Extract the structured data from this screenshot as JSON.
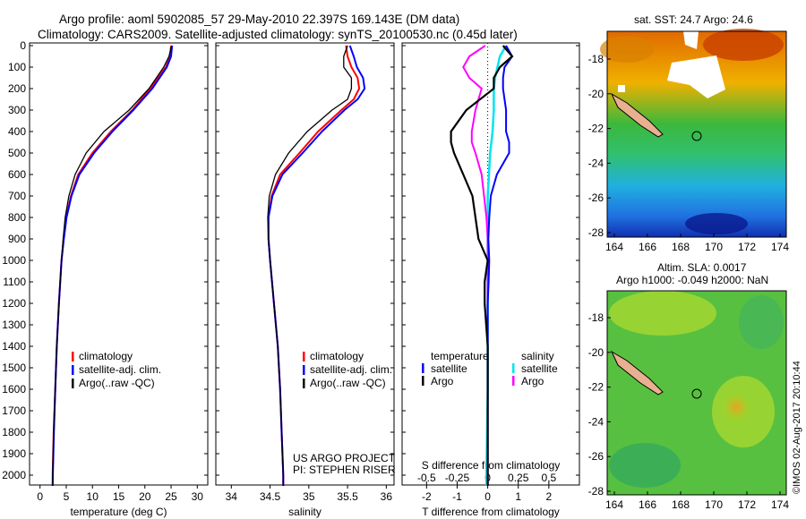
{
  "title_line1": "Argo profile: aoml 5902085_57 29-May-2010 22.397S 169.143E (DM data)",
  "title_line2": "Climatology: CARS2009. Satellite-adjusted climatology: synTS_20100530.nc (0.45d later)",
  "credit": "US ARGO PROJECT",
  "pi": "PI: STEPHEN RISER",
  "imos_stamp": "©IMOS 02-Aug-2017 20:10:44",
  "colors": {
    "climatology": "#ff0000",
    "satellite": "#0000ff",
    "argo": "#000000",
    "sal_satellite": "#00e5ee",
    "sal_argo": "#ff00ff"
  },
  "chart_data": [
    {
      "type": "line",
      "name": "temperature",
      "xlabel": "temperature (deg C)",
      "xlim": [
        -2,
        32
      ],
      "ylim": [
        2050,
        0
      ],
      "xticks": [
        "0",
        "5",
        "10",
        "15",
        "20",
        "25",
        "30"
      ],
      "yticks": [
        "0",
        "100",
        "200",
        "300",
        "400",
        "500",
        "600",
        "700",
        "800",
        "900",
        "1000",
        "1100",
        "1200",
        "1300",
        "1400",
        "1500",
        "1600",
        "1700",
        "1800",
        "1900",
        "2000"
      ],
      "legend": [
        "climatology",
        "satellite-adj. clim.",
        "Argo(..raw -QC)"
      ],
      "depth": [
        0,
        50,
        100,
        200,
        300,
        400,
        500,
        600,
        700,
        800,
        900,
        1000,
        1200,
        1400,
        1600,
        1800,
        2000,
        2050
      ],
      "series": [
        {
          "name": "climatology",
          "values": [
            25,
            24.8,
            24,
            21,
            17.6,
            13.5,
            10,
            7.3,
            5.9,
            5.0,
            4.5,
            4.1,
            3.6,
            3.2,
            2.9,
            2.6,
            2.4,
            2.4
          ]
        },
        {
          "name": "satellite-adj. clim.",
          "values": [
            25.2,
            25,
            24.2,
            21.4,
            17.8,
            13.8,
            10.3,
            7.5,
            6.0,
            5.05,
            4.55,
            4.1,
            3.6,
            3.2,
            2.9,
            2.65,
            2.45,
            2.4
          ]
        },
        {
          "name": "Argo(..raw -QC)",
          "values": [
            25.1,
            24.6,
            23.6,
            20.8,
            17,
            12.2,
            8.8,
            6.7,
            5.5,
            4.8,
            4.4,
            4.1,
            3.6,
            3.2,
            2.9,
            2.6,
            2.4,
            2.4
          ]
        }
      ]
    },
    {
      "type": "line",
      "name": "salinity",
      "xlabel": "salinity",
      "xlim": [
        33.8,
        36.1
      ],
      "ylim": [
        2050,
        0
      ],
      "xticks": [
        "34",
        "34.5",
        "35",
        "35.5",
        "36"
      ],
      "legend": [
        "climatology",
        "satellite-adj. clim.",
        "Argo(..raw -QC)"
      ],
      "depth": [
        0,
        50,
        100,
        150,
        200,
        250,
        300,
        400,
        500,
        600,
        700,
        800,
        900,
        1000,
        1200,
        1400,
        1600,
        1800,
        2000,
        2050
      ],
      "series": [
        {
          "name": "climatology",
          "values": [
            35.48,
            35.5,
            35.55,
            35.63,
            35.65,
            35.58,
            35.42,
            35.12,
            34.88,
            34.63,
            34.52,
            34.48,
            34.48,
            34.5,
            34.55,
            34.6,
            34.63,
            34.65,
            34.67,
            34.67
          ]
        },
        {
          "name": "satellite-adj. clim.",
          "values": [
            35.53,
            35.58,
            35.62,
            35.7,
            35.72,
            35.63,
            35.46,
            35.17,
            34.92,
            34.66,
            34.53,
            34.48,
            34.48,
            34.5,
            34.55,
            34.6,
            34.63,
            34.65,
            34.67,
            34.67
          ]
        },
        {
          "name": "Argo(..raw -QC)",
          "values": [
            35.5,
            35.45,
            35.45,
            35.55,
            35.55,
            35.5,
            35.3,
            34.98,
            34.74,
            34.57,
            34.49,
            34.47,
            34.48,
            34.5,
            34.55,
            34.6,
            34.63,
            34.65,
            34.67,
            34.67
          ]
        }
      ]
    },
    {
      "type": "line",
      "name": "difference",
      "xlabel": "T difference from climatology",
      "x2label": "S difference from climatology",
      "xlim": [
        -2.8,
        3
      ],
      "ylim": [
        2050,
        0
      ],
      "xticks": [
        "-2",
        "-1",
        "0",
        "1",
        "2"
      ],
      "x2ticks": [
        "-0.5",
        "-0.25",
        "0",
        "0.25",
        "0.5"
      ],
      "legend_temperature_title": "temperature",
      "legend_salinity_title": "salinity",
      "legend": [
        "satellite",
        "Argo",
        "satellite",
        "Argo"
      ],
      "depth": [
        0,
        50,
        100,
        150,
        200,
        300,
        400,
        450,
        500,
        600,
        700,
        800,
        900,
        1000,
        1100,
        1200,
        1300,
        1400,
        1600,
        2000,
        2050
      ],
      "series": [
        {
          "name": "T satellite",
          "values": [
            0.6,
            0.8,
            0.55,
            0.5,
            0.5,
            0.6,
            0.6,
            0.7,
            0.7,
            0.3,
            0.1,
            0.05,
            0.02,
            0.05,
            0.03,
            0.0,
            0.0,
            0.0,
            0.0,
            0.0,
            0.0
          ]
        },
        {
          "name": "T Argo",
          "values": [
            0.5,
            0.8,
            0.4,
            0.2,
            0.2,
            -0.7,
            -1.2,
            -1.2,
            -1.1,
            -0.8,
            -0.5,
            -0.4,
            -0.3,
            0.0,
            -0.1,
            -0.1,
            -0.05,
            0.0,
            0.0,
            0.0,
            0.0
          ]
        },
        {
          "name": "S satellite",
          "values": [
            0.15,
            0.1,
            0.08,
            0.06,
            0.05,
            0.05,
            0.04,
            0.03,
            0.02,
            0.01,
            0.0,
            0.0,
            0.0,
            0.0,
            0.0,
            0.0,
            0.0,
            0.0,
            0.0,
            -0.01,
            -0.01
          ]
        },
        {
          "name": "S Argo",
          "values": [
            -0.02,
            -0.15,
            -0.2,
            -0.15,
            -0.05,
            -0.1,
            -0.13,
            -0.13,
            -0.1,
            -0.05,
            -0.03,
            -0.01,
            0.0,
            0.0,
            0.0,
            0.0,
            0.0,
            0.0,
            0.0,
            0.0,
            0.0
          ]
        }
      ]
    }
  ],
  "maps": [
    {
      "title": "sat. SST: 24.7 Argo: 24.6",
      "xticks": [
        "164",
        "166",
        "168",
        "170",
        "172",
        "174"
      ],
      "yticks": [
        "-18",
        "-20",
        "-22",
        "-24",
        "-26",
        "-28"
      ]
    },
    {
      "title1": "Altim. SLA: 0.0017",
      "title2": "Argo h1000: -0.049 h2000: NaN",
      "xticks": [
        "164",
        "166",
        "168",
        "170",
        "172",
        "174"
      ],
      "yticks": [
        "-18",
        "-20",
        "-22",
        "-24",
        "-26",
        "-28"
      ]
    }
  ]
}
